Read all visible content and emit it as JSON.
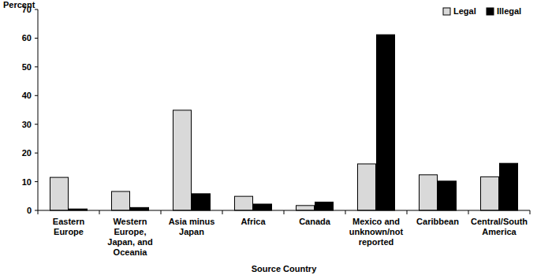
{
  "chart_data": {
    "type": "bar",
    "y_label": "Percent",
    "x_label": "Source Country",
    "categories": [
      "Eastern Europe",
      "Western Europe, Japan, and Oceania",
      "Asia minus Japan",
      "Africa",
      "Canada",
      "Mexico and unknown/not reported",
      "Caribbean",
      "Central/South America"
    ],
    "series": [
      {
        "name": "Legal",
        "color": "#d9d9d9",
        "values": [
          11.5,
          6.6,
          34.9,
          4.9,
          1.7,
          16.2,
          12.4,
          11.7
        ]
      },
      {
        "name": "Illegal",
        "color": "#000000",
        "values": [
          0.5,
          1.0,
          5.8,
          2.2,
          2.9,
          61.2,
          10.2,
          16.4
        ]
      }
    ],
    "ylim": [
      0,
      70
    ],
    "yticks": [
      0,
      10,
      20,
      30,
      40,
      50,
      60,
      70
    ],
    "grid": false,
    "legend": "top-right"
  }
}
